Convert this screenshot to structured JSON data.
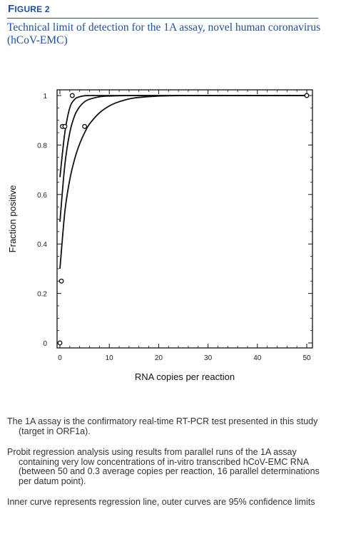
{
  "figure_label_initial": "F",
  "figure_label_rest": "IGURE 2",
  "title": "Technical limit of detection for the 1A assay, novel human coronavirus (hCoV-EMC)",
  "chart_data": {
    "type": "scatter",
    "xlabel": "RNA copies per reaction",
    "ylabel": "Fraction positive",
    "xlim": [
      0,
      50
    ],
    "ylim": [
      0,
      1
    ],
    "xticks": [
      0,
      10,
      20,
      30,
      40,
      50
    ],
    "xtick_labels": [
      "0",
      "10",
      "20",
      "30",
      "40",
      "50"
    ],
    "yticks": [
      0,
      0.2,
      0.4,
      0.6,
      0.8,
      1
    ],
    "ytick_labels": [
      "0",
      "0.2",
      "0.4",
      "0.6",
      "0.8",
      "1"
    ],
    "grid": false,
    "points": [
      {
        "x": 0,
        "y": 0
      },
      {
        "x": 0.3,
        "y": 0.25
      },
      {
        "x": 0.5,
        "y": 0.875
      },
      {
        "x": 1.0,
        "y": 0.875
      },
      {
        "x": 2.5,
        "y": 1.0
      },
      {
        "x": 5.0,
        "y": 0.875
      },
      {
        "x": 50,
        "y": 1.0
      }
    ],
    "curves": [
      {
        "role": "upper confidence limit",
        "x": [
          0,
          1,
          2,
          3,
          4,
          5,
          6,
          8,
          10,
          15,
          20,
          30,
          40,
          50
        ],
        "y": [
          0.67,
          0.85,
          0.95,
          0.985,
          0.995,
          0.999,
          1.0,
          1.0,
          1.0,
          1.0,
          1.0,
          1.0,
          1.0,
          1.0
        ]
      },
      {
        "role": "regression line",
        "x": [
          0,
          1,
          2,
          3,
          4,
          5,
          6,
          8,
          10,
          15,
          20,
          30,
          40,
          50
        ],
        "y": [
          0.49,
          0.72,
          0.85,
          0.92,
          0.955,
          0.975,
          0.985,
          0.995,
          0.998,
          1.0,
          1.0,
          1.0,
          1.0,
          1.0
        ]
      },
      {
        "role": "lower confidence limit",
        "x": [
          0,
          1,
          2,
          3,
          4,
          5,
          6,
          8,
          10,
          12,
          15,
          20,
          25,
          30,
          40,
          50
        ],
        "y": [
          0.3,
          0.53,
          0.66,
          0.745,
          0.805,
          0.85,
          0.885,
          0.93,
          0.958,
          0.975,
          0.99,
          0.998,
          1.0,
          1.0,
          1.0,
          1.0
        ]
      }
    ]
  },
  "notes": [
    "The 1A assay is the confirmatory real-time RT-PCR test presented in this study (target in ORF1a).",
    "Probit regression analysis using results from parallel runs of the 1A assay containing very low concentrations of in-vitro transcribed hCoV-EMC RNA (between 50 and 0.3 average copies per reaction, 16 parallel determinations per datum point).",
    "Inner curve represents regression line, outer curves are 95% confidence limits"
  ]
}
